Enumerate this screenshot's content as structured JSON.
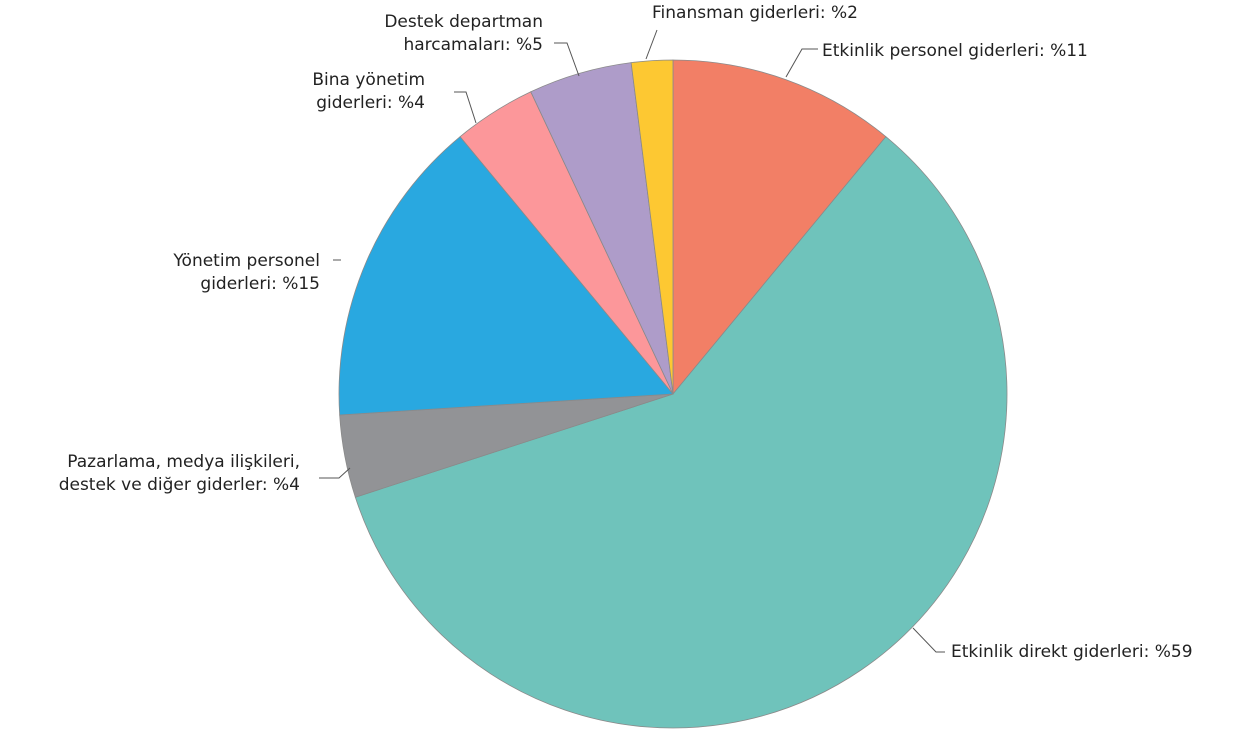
{
  "chart_data": {
    "type": "pie",
    "title": "",
    "slices": [
      {
        "label": [
          "Etkinlik personel giderleri: %11"
        ],
        "value": 11,
        "color": "#f27f66"
      },
      {
        "label": [
          "Etkinlik direkt giderleri: %59"
        ],
        "value": 59,
        "color": "#6fc3bb"
      },
      {
        "label": [
          "Pazarlama, medya ilişkileri,",
          "destek ve diğer giderler: %4"
        ],
        "value": 4,
        "color": "#929396"
      },
      {
        "label": [
          "Yönetim personel",
          "giderleri: %15"
        ],
        "value": 15,
        "color": "#29a8e0"
      },
      {
        "label": [
          "Bina yönetim",
          "giderleri: %4"
        ],
        "value": 4,
        "color": "#fc979a"
      },
      {
        "label": [
          "Destek departman",
          "harcamaları: %5"
        ],
        "value": 5,
        "color": "#ae9cc9"
      },
      {
        "label": [
          "Finansman giderleri: %2"
        ],
        "value": 2,
        "color": "#fdc832"
      }
    ]
  }
}
